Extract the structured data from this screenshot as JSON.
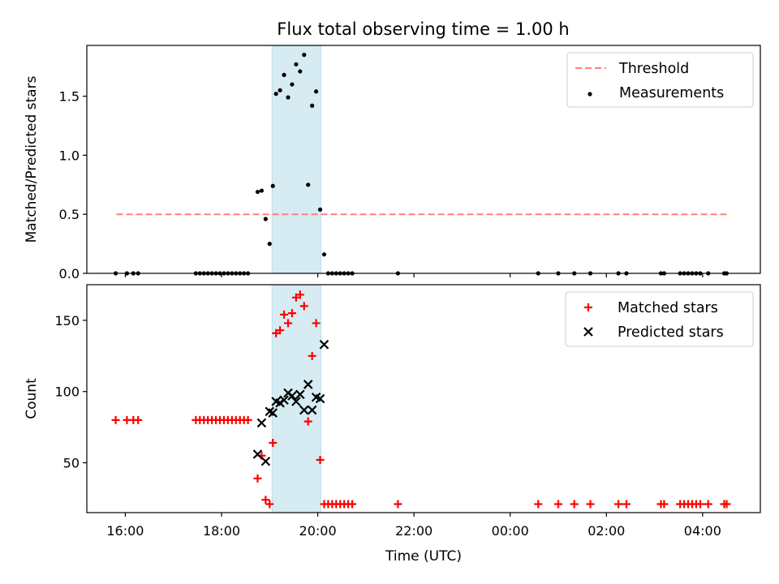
{
  "title": "Flux total observing time = 1.00 h",
  "chart_data": [
    {
      "type": "scatter",
      "ylabel": "Matched/Predicted stars",
      "xlabel": "",
      "x_axis": {
        "kind": "time",
        "range": [
          "15:12",
          "05:12"
        ],
        "ticks": [
          "16:00",
          "18:00",
          "20:00",
          "22:00",
          "00:00",
          "02:00",
          "04:00"
        ],
        "tick_labels_shown": false
      },
      "ylim": [
        0,
        1.93
      ],
      "yticks": [
        0.0,
        0.5,
        1.0,
        1.5
      ],
      "ytick_labels": [
        "0.0",
        "0.5",
        "1.0",
        "1.5"
      ],
      "shaded_interval": {
        "start": "19:03",
        "end": "20:04",
        "color": "#add8e6"
      },
      "threshold": {
        "name": "Threshold",
        "value": 0.5,
        "start": "15:49",
        "end": "04:31",
        "color": "#ff7f7f"
      },
      "legend": {
        "placement": "top-right",
        "entries": [
          "Threshold",
          "Measurements"
        ]
      },
      "series": [
        {
          "name": "Measurements",
          "marker": "dot",
          "color": "#000000",
          "points": [
            {
              "x": "15:48",
              "y": 0.0
            },
            {
              "x": "16:02",
              "y": 0.0
            },
            {
              "x": "16:10",
              "y": 0.0
            },
            {
              "x": "16:16",
              "y": 0.0
            },
            {
              "x": "17:28",
              "y": 0.0
            },
            {
              "x": "17:33",
              "y": 0.0
            },
            {
              "x": "17:38",
              "y": 0.0
            },
            {
              "x": "17:43",
              "y": 0.0
            },
            {
              "x": "17:48",
              "y": 0.0
            },
            {
              "x": "17:53",
              "y": 0.0
            },
            {
              "x": "17:58",
              "y": 0.0
            },
            {
              "x": "18:03",
              "y": 0.0
            },
            {
              "x": "18:08",
              "y": 0.0
            },
            {
              "x": "18:13",
              "y": 0.0
            },
            {
              "x": "18:18",
              "y": 0.0
            },
            {
              "x": "18:23",
              "y": 0.0
            },
            {
              "x": "18:28",
              "y": 0.0
            },
            {
              "x": "18:33",
              "y": 0.0
            },
            {
              "x": "18:45",
              "y": 0.69
            },
            {
              "x": "18:50",
              "y": 0.7
            },
            {
              "x": "18:55",
              "y": 0.46
            },
            {
              "x": "19:00",
              "y": 0.25
            },
            {
              "x": "19:04",
              "y": 0.74
            },
            {
              "x": "19:08",
              "y": 1.52
            },
            {
              "x": "19:13",
              "y": 1.55
            },
            {
              "x": "19:18",
              "y": 1.68
            },
            {
              "x": "19:23",
              "y": 1.49
            },
            {
              "x": "19:28",
              "y": 1.6
            },
            {
              "x": "19:33",
              "y": 1.77
            },
            {
              "x": "19:38",
              "y": 1.71
            },
            {
              "x": "19:43",
              "y": 1.85
            },
            {
              "x": "19:48",
              "y": 0.75
            },
            {
              "x": "19:53",
              "y": 1.42
            },
            {
              "x": "19:58",
              "y": 1.54
            },
            {
              "x": "20:03",
              "y": 0.54
            },
            {
              "x": "20:08",
              "y": 0.16
            },
            {
              "x": "20:13",
              "y": 0.0
            },
            {
              "x": "20:18",
              "y": 0.0
            },
            {
              "x": "20:23",
              "y": 0.0
            },
            {
              "x": "20:28",
              "y": 0.0
            },
            {
              "x": "20:33",
              "y": 0.0
            },
            {
              "x": "20:38",
              "y": 0.0
            },
            {
              "x": "20:43",
              "y": 0.0
            },
            {
              "x": "21:40",
              "y": 0.0
            },
            {
              "x": "00:35",
              "y": 0.0
            },
            {
              "x": "01:00",
              "y": 0.0
            },
            {
              "x": "01:20",
              "y": 0.0
            },
            {
              "x": "01:40",
              "y": 0.0
            },
            {
              "x": "02:15",
              "y": 0.0
            },
            {
              "x": "02:25",
              "y": 0.0
            },
            {
              "x": "03:08",
              "y": 0.0
            },
            {
              "x": "03:12",
              "y": 0.0
            },
            {
              "x": "03:32",
              "y": 0.0
            },
            {
              "x": "03:37",
              "y": 0.0
            },
            {
              "x": "03:42",
              "y": 0.0
            },
            {
              "x": "03:47",
              "y": 0.0
            },
            {
              "x": "03:52",
              "y": 0.0
            },
            {
              "x": "03:57",
              "y": 0.0
            },
            {
              "x": "04:07",
              "y": 0.0
            },
            {
              "x": "04:27",
              "y": 0.0
            },
            {
              "x": "04:30",
              "y": 0.0
            }
          ]
        }
      ]
    },
    {
      "type": "scatter",
      "ylabel": "Count",
      "xlabel": "Time (UTC)",
      "x_axis": {
        "kind": "time",
        "range": [
          "15:12",
          "05:12"
        ],
        "ticks": [
          "16:00",
          "18:00",
          "20:00",
          "22:00",
          "00:00",
          "02:00",
          "04:00"
        ],
        "tick_labels_shown": true
      },
      "ylim": [
        15,
        175
      ],
      "yticks": [
        50,
        100,
        150
      ],
      "ytick_labels": [
        "50",
        "100",
        "150"
      ],
      "shaded_interval": {
        "start": "19:03",
        "end": "20:04",
        "color": "#add8e6"
      },
      "legend": {
        "placement": "top-right",
        "entries": [
          "Matched stars",
          "Predicted stars"
        ]
      },
      "series": [
        {
          "name": "Matched stars",
          "marker": "plus",
          "color": "#ff0000",
          "points": [
            {
              "x": "15:48",
              "y": 80
            },
            {
              "x": "16:02",
              "y": 80
            },
            {
              "x": "16:10",
              "y": 80
            },
            {
              "x": "16:16",
              "y": 80
            },
            {
              "x": "17:28",
              "y": 80
            },
            {
              "x": "17:33",
              "y": 80
            },
            {
              "x": "17:38",
              "y": 80
            },
            {
              "x": "17:43",
              "y": 80
            },
            {
              "x": "17:48",
              "y": 80
            },
            {
              "x": "17:53",
              "y": 80
            },
            {
              "x": "17:58",
              "y": 80
            },
            {
              "x": "18:03",
              "y": 80
            },
            {
              "x": "18:08",
              "y": 80
            },
            {
              "x": "18:13",
              "y": 80
            },
            {
              "x": "18:18",
              "y": 80
            },
            {
              "x": "18:23",
              "y": 80
            },
            {
              "x": "18:28",
              "y": 80
            },
            {
              "x": "18:33",
              "y": 80
            },
            {
              "x": "18:45",
              "y": 39
            },
            {
              "x": "18:50",
              "y": 55
            },
            {
              "x": "18:55",
              "y": 24
            },
            {
              "x": "19:00",
              "y": 21
            },
            {
              "x": "19:04",
              "y": 64
            },
            {
              "x": "19:08",
              "y": 141
            },
            {
              "x": "19:13",
              "y": 143
            },
            {
              "x": "19:18",
              "y": 154
            },
            {
              "x": "19:23",
              "y": 148
            },
            {
              "x": "19:28",
              "y": 155
            },
            {
              "x": "19:33",
              "y": 166
            },
            {
              "x": "19:38",
              "y": 168
            },
            {
              "x": "19:43",
              "y": 160
            },
            {
              "x": "19:48",
              "y": 79
            },
            {
              "x": "19:53",
              "y": 125
            },
            {
              "x": "19:58",
              "y": 148
            },
            {
              "x": "20:03",
              "y": 52
            },
            {
              "x": "20:08",
              "y": 21
            },
            {
              "x": "20:13",
              "y": 21
            },
            {
              "x": "20:18",
              "y": 21
            },
            {
              "x": "20:23",
              "y": 21
            },
            {
              "x": "20:28",
              "y": 21
            },
            {
              "x": "20:33",
              "y": 21
            },
            {
              "x": "20:38",
              "y": 21
            },
            {
              "x": "20:43",
              "y": 21
            },
            {
              "x": "21:40",
              "y": 21
            },
            {
              "x": "00:35",
              "y": 21
            },
            {
              "x": "01:00",
              "y": 21
            },
            {
              "x": "01:20",
              "y": 21
            },
            {
              "x": "01:40",
              "y": 21
            },
            {
              "x": "02:15",
              "y": 21
            },
            {
              "x": "02:25",
              "y": 21
            },
            {
              "x": "03:08",
              "y": 21
            },
            {
              "x": "03:12",
              "y": 21
            },
            {
              "x": "03:32",
              "y": 21
            },
            {
              "x": "03:37",
              "y": 21
            },
            {
              "x": "03:42",
              "y": 21
            },
            {
              "x": "03:47",
              "y": 21
            },
            {
              "x": "03:52",
              "y": 21
            },
            {
              "x": "03:57",
              "y": 21
            },
            {
              "x": "04:07",
              "y": 21
            },
            {
              "x": "04:27",
              "y": 21
            },
            {
              "x": "04:30",
              "y": 21
            }
          ]
        },
        {
          "name": "Predicted stars",
          "marker": "x",
          "color": "#000000",
          "points": [
            {
              "x": "18:45",
              "y": 56
            },
            {
              "x": "18:50",
              "y": 78
            },
            {
              "x": "18:55",
              "y": 51
            },
            {
              "x": "19:00",
              "y": 86
            },
            {
              "x": "19:04",
              "y": 85
            },
            {
              "x": "19:08",
              "y": 93
            },
            {
              "x": "19:13",
              "y": 92
            },
            {
              "x": "19:18",
              "y": 94
            },
            {
              "x": "19:23",
              "y": 99
            },
            {
              "x": "19:28",
              "y": 97
            },
            {
              "x": "19:33",
              "y": 93
            },
            {
              "x": "19:38",
              "y": 98
            },
            {
              "x": "19:43",
              "y": 87
            },
            {
              "x": "19:48",
              "y": 105
            },
            {
              "x": "19:53",
              "y": 87
            },
            {
              "x": "19:58",
              "y": 96
            },
            {
              "x": "20:03",
              "y": 95
            },
            {
              "x": "20:08",
              "y": 133
            }
          ]
        }
      ]
    }
  ]
}
